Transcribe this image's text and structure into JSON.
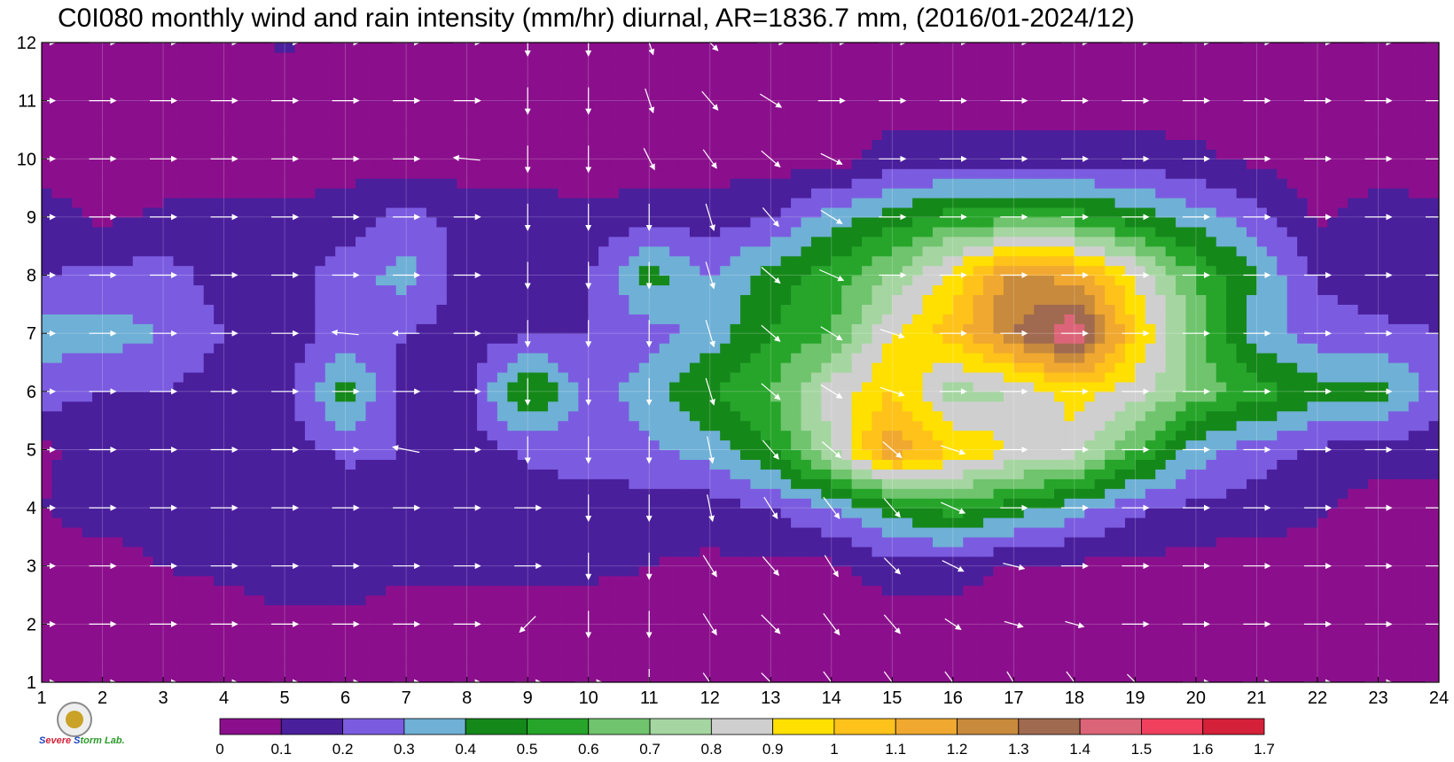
{
  "chart_data": {
    "type": "heatmap",
    "title": "C0I080 monthly wind and rain intensity (mm/hr) diurnal, AR=1836.7 mm, (2016/01-2024/12)",
    "xlabel": "",
    "ylabel": "",
    "x_ticks": [
      "1",
      "2",
      "3",
      "4",
      "5",
      "6",
      "7",
      "8",
      "9",
      "10",
      "11",
      "12",
      "13",
      "14",
      "15",
      "16",
      "17",
      "18",
      "19",
      "20",
      "21",
      "22",
      "23",
      "24"
    ],
    "y_ticks": [
      "1",
      "2",
      "3",
      "4",
      "5",
      "6",
      "7",
      "8",
      "9",
      "10",
      "11",
      "12"
    ],
    "xlim": [
      1,
      24
    ],
    "ylim": [
      1,
      12
    ],
    "grid": true,
    "levels": [
      0,
      0.1,
      0.2,
      0.3,
      0.4,
      0.5,
      0.6,
      0.7,
      0.8,
      0.9,
      1,
      1.1,
      1.2,
      1.3,
      1.4,
      1.5,
      1.6,
      1.7
    ],
    "colorbar_labels": [
      "0",
      "0.1",
      "0.2",
      "0.3",
      "0.4",
      "0.5",
      "0.6",
      "0.7",
      "0.8",
      "0.9",
      "1",
      "1.1",
      "1.2",
      "1.3",
      "1.4",
      "1.5",
      "1.6",
      "1.7"
    ],
    "colors": [
      "#8b0f8c",
      "#4a1f9c",
      "#7b5ce0",
      "#6fb0d6",
      "#15881a",
      "#26a52a",
      "#6fc46d",
      "#a5d6a1",
      "#cfcfcf",
      "#ffe000",
      "#ffc21a",
      "#f0a830",
      "#c88a3c",
      "#a06a50",
      "#dc6478",
      "#f0405e",
      "#d42038"
    ],
    "rain": [
      [
        0.05,
        0.05,
        0.05,
        0.05,
        0.05,
        0.05,
        0.05,
        0.05,
        0.05,
        0.05,
        0.05,
        0.05,
        0.05,
        0.05,
        0.05,
        0.05,
        0.05,
        0.05,
        0.05,
        0.05,
        0.05,
        0.05,
        0.05,
        0.05
      ],
      [
        0.05,
        0.05,
        0.05,
        0.05,
        0.08,
        0.08,
        0.05,
        0.05,
        0.05,
        0.05,
        0.05,
        0.05,
        0.05,
        0.05,
        0.05,
        0.05,
        0.05,
        0.05,
        0.05,
        0.05,
        0.05,
        0.05,
        0.05,
        0.05
      ],
      [
        0.05,
        0.05,
        0.1,
        0.12,
        0.15,
        0.15,
        0.12,
        0.12,
        0.12,
        0.12,
        0.1,
        0.08,
        0.08,
        0.08,
        0.15,
        0.15,
        0.08,
        0.08,
        0.08,
        0.05,
        0.05,
        0.05,
        0.05,
        0.05
      ],
      [
        0.1,
        0.15,
        0.15,
        0.15,
        0.15,
        0.15,
        0.15,
        0.15,
        0.15,
        0.15,
        0.15,
        0.15,
        0.2,
        0.3,
        0.45,
        0.55,
        0.45,
        0.35,
        0.22,
        0.18,
        0.15,
        0.12,
        0.05,
        0.05
      ],
      [
        0.08,
        0.15,
        0.15,
        0.2,
        0.15,
        0.22,
        0.2,
        0.15,
        0.22,
        0.25,
        0.28,
        0.35,
        0.5,
        0.8,
        1.2,
        1.0,
        0.9,
        0.85,
        0.6,
        0.35,
        0.25,
        0.18,
        0.15,
        0.15
      ],
      [
        0.25,
        0.2,
        0.2,
        0.15,
        0.15,
        0.45,
        0.15,
        0.15,
        0.55,
        0.25,
        0.35,
        0.5,
        0.6,
        0.85,
        1.0,
        0.75,
        0.8,
        0.95,
        0.85,
        0.65,
        0.55,
        0.45,
        0.45,
        0.25
      ],
      [
        0.35,
        0.35,
        0.3,
        0.2,
        0.15,
        0.25,
        0.2,
        0.15,
        0.18,
        0.2,
        0.25,
        0.35,
        0.5,
        0.6,
        0.9,
        1.05,
        1.3,
        1.5,
        1.0,
        0.65,
        0.35,
        0.25,
        0.22,
        0.2
      ],
      [
        0.2,
        0.22,
        0.25,
        0.15,
        0.15,
        0.25,
        0.35,
        0.15,
        0.15,
        0.2,
        0.45,
        0.3,
        0.45,
        0.55,
        0.7,
        0.95,
        1.25,
        1.15,
        0.9,
        0.6,
        0.4,
        0.18,
        0.15,
        0.15
      ],
      [
        0.15,
        0.08,
        0.12,
        0.12,
        0.12,
        0.15,
        0.25,
        0.15,
        0.15,
        0.12,
        0.15,
        0.15,
        0.2,
        0.35,
        0.45,
        0.55,
        0.55,
        0.55,
        0.45,
        0.35,
        0.25,
        0.08,
        0.15,
        0.12
      ],
      [
        0.05,
        0.05,
        0.05,
        0.05,
        0.05,
        0.05,
        0.05,
        0.05,
        0.05,
        0.05,
        0.05,
        0.05,
        0.05,
        0.05,
        0.15,
        0.15,
        0.15,
        0.15,
        0.15,
        0.12,
        0.08,
        0.05,
        0.05,
        0.05
      ],
      [
        0.05,
        0.05,
        0.05,
        0.05,
        0.05,
        0.05,
        0.05,
        0.05,
        0.05,
        0.05,
        0.05,
        0.05,
        0.05,
        0.05,
        0.05,
        0.05,
        0.05,
        0.05,
        0.05,
        0.05,
        0.05,
        0.05,
        0.05,
        0.05
      ],
      [
        0.05,
        0.05,
        0.05,
        0.05,
        0.12,
        0.05,
        0.05,
        0.05,
        0.05,
        0.05,
        0.05,
        0.05,
        0.05,
        0.05,
        0.05,
        0.05,
        0.05,
        0.05,
        0.05,
        0.05,
        0.05,
        0.05,
        0.05,
        0.05
      ]
    ],
    "wind_u": [
      [
        1,
        1,
        1,
        1,
        1,
        1,
        1,
        1,
        1,
        1,
        0,
        0.5,
        0.7,
        0.6,
        0.6,
        0.6,
        0.5,
        0.6,
        0.6,
        1,
        1,
        1,
        1,
        1
      ],
      [
        1,
        1,
        1,
        1,
        1,
        1,
        1,
        1,
        -0.6,
        0,
        0,
        0.5,
        0.7,
        0.6,
        0.6,
        0.6,
        0.7,
        0.7,
        1,
        1,
        1,
        1,
        1,
        1
      ],
      [
        1,
        1,
        1,
        1,
        1,
        1,
        1,
        1,
        1,
        0,
        0,
        0.5,
        0.6,
        0.5,
        0.6,
        0.8,
        0.8,
        1,
        1,
        1,
        1,
        1,
        1,
        1
      ],
      [
        1,
        1,
        1,
        1,
        1,
        1,
        1,
        1,
        1,
        0,
        0,
        0.2,
        0.5,
        0.6,
        0.6,
        0.9,
        1,
        1,
        1,
        1,
        1,
        1,
        1,
        1
      ],
      [
        1,
        1,
        1,
        1,
        1,
        1,
        -1,
        1,
        0,
        0,
        0,
        0.2,
        0.6,
        0.7,
        0.7,
        0.9,
        1,
        1,
        1,
        1,
        1,
        1,
        1,
        1
      ],
      [
        1,
        1,
        1,
        1,
        1,
        1,
        1,
        1,
        0,
        0,
        0,
        0.3,
        0.7,
        0.8,
        0.9,
        1,
        1,
        1,
        1,
        1,
        1,
        1,
        1,
        1
      ],
      [
        1,
        1,
        1,
        1,
        1,
        -1,
        -1,
        1,
        0,
        0,
        0,
        0.3,
        0.7,
        0.8,
        0.9,
        1,
        1,
        1,
        1,
        1,
        1,
        1,
        1,
        1
      ],
      [
        1,
        1,
        1,
        1,
        1,
        1,
        1,
        1,
        0,
        0,
        0,
        0.3,
        0.7,
        0.9,
        1,
        1,
        1,
        1,
        1,
        1,
        1,
        1,
        1,
        1
      ],
      [
        1,
        1,
        1,
        1,
        1,
        1,
        1,
        1,
        0,
        0,
        0,
        0.3,
        0.6,
        0.8,
        1,
        1,
        1,
        1,
        1,
        1,
        1,
        1,
        1,
        1
      ],
      [
        1,
        1,
        1,
        1,
        1,
        1,
        1,
        -1,
        0,
        0,
        0.4,
        0.5,
        0.7,
        0.8,
        1,
        1,
        1,
        1,
        1,
        1,
        1,
        1,
        1,
        1
      ],
      [
        1,
        1,
        1,
        1,
        1,
        1,
        1,
        1,
        0,
        0,
        0.3,
        0.6,
        0.8,
        1,
        1,
        1,
        1,
        1,
        1,
        1,
        1,
        1,
        1,
        1
      ],
      [
        1,
        1,
        1,
        1,
        1,
        1,
        1,
        1,
        0,
        0,
        0.3,
        0.6,
        1,
        1,
        1,
        1,
        1,
        1,
        1,
        1,
        1,
        1,
        1,
        1
      ]
    ],
    "wind_v": [
      [
        0,
        0,
        0,
        0,
        0,
        0,
        0,
        0,
        0,
        0,
        -1,
        -0.7,
        -0.7,
        -0.8,
        -0.8,
        -0.8,
        -0.8,
        -0.8,
        -0.6,
        0,
        0,
        0,
        0,
        0
      ],
      [
        0,
        0,
        0,
        0,
        0,
        0,
        0,
        0,
        -0.6,
        -1,
        -1,
        -0.8,
        -0.7,
        -0.8,
        -0.7,
        -0.4,
        -0.2,
        -0.2,
        0,
        0,
        0,
        0,
        0,
        0
      ],
      [
        0,
        0,
        0,
        0,
        0,
        0,
        0,
        0,
        0,
        -1,
        -1,
        -0.8,
        -0.7,
        -0.8,
        -0.6,
        -0.4,
        -0.2,
        0,
        0,
        0,
        0,
        0,
        0,
        0
      ],
      [
        0,
        0,
        0,
        0,
        0,
        0,
        0,
        0,
        0,
        -1,
        -1,
        -1,
        -0.8,
        -0.8,
        -0.7,
        -0.4,
        0,
        0,
        0,
        0,
        0,
        0,
        0,
        0
      ],
      [
        0,
        0,
        0,
        0,
        0,
        0,
        0.2,
        0,
        -1,
        -1,
        -1,
        -1,
        -0.7,
        -0.6,
        -0.6,
        -0.3,
        0,
        0,
        0,
        0,
        0,
        0,
        0,
        0
      ],
      [
        0,
        0,
        0,
        0,
        0,
        0,
        0,
        0,
        -1,
        -1,
        -1,
        -1,
        -0.6,
        -0.5,
        -0.3,
        0,
        0,
        0,
        0,
        0,
        0,
        0,
        0,
        0
      ],
      [
        0,
        0,
        0,
        0,
        0,
        0.1,
        0,
        0,
        -1,
        -1,
        -1,
        -1,
        -0.6,
        -0.5,
        -0.3,
        0,
        0,
        0,
        0,
        0,
        0,
        0,
        0,
        0
      ],
      [
        0,
        0,
        0,
        0,
        0,
        0,
        0,
        0,
        -1,
        -1,
        -1,
        -1,
        -0.6,
        -0.4,
        0,
        0,
        0,
        0,
        0,
        0,
        0,
        0,
        0,
        0
      ],
      [
        0,
        0,
        0,
        0,
        0,
        0,
        0,
        0,
        -1,
        -1,
        -1,
        -1,
        -0.7,
        -0.5,
        0,
        0,
        0,
        0,
        0,
        0,
        0,
        0,
        0,
        0
      ],
      [
        0,
        0,
        0,
        0,
        0,
        0,
        0,
        0.1,
        -1,
        -1,
        -0.8,
        -0.7,
        -0.6,
        -0.4,
        0,
        0,
        0,
        0,
        0,
        0,
        0,
        0,
        0,
        0
      ],
      [
        0,
        0,
        0,
        0,
        0,
        0,
        0,
        0,
        -1,
        -1,
        -0.9,
        -0.7,
        -0.5,
        0,
        0,
        0,
        0,
        0,
        0,
        0,
        0,
        0,
        0,
        0
      ],
      [
        0,
        0,
        0,
        0,
        0,
        0,
        0,
        0,
        -1,
        -1,
        -0.9,
        -0.6,
        0,
        0,
        0,
        0,
        0,
        0,
        0,
        0,
        0,
        0,
        0,
        0
      ]
    ]
  },
  "logo": {
    "lab_text": "Lab."
  }
}
